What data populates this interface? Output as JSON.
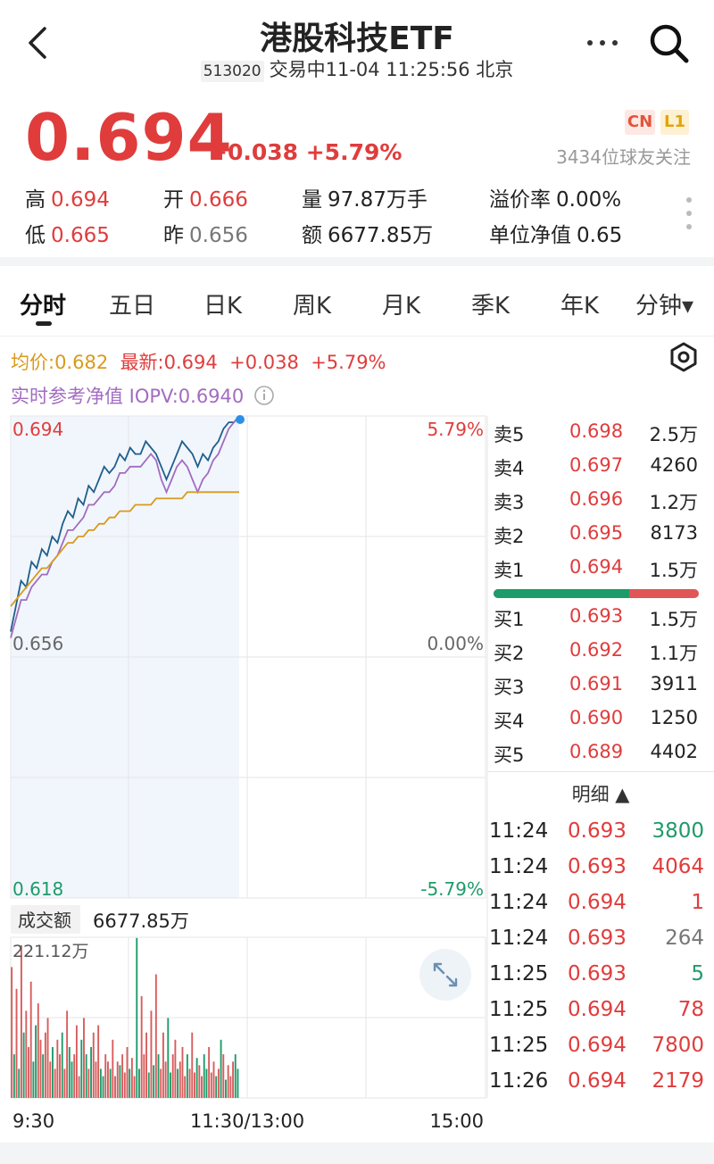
{
  "header": {
    "title": "港股科技ETF",
    "code": "513020",
    "status": "交易中11-04 11:25:56 北京",
    "icons": [
      "back-arrow-icon",
      "more-icon",
      "search-icon"
    ]
  },
  "quote": {
    "price": "0.694",
    "change": "+0.038 +5.79%",
    "badge_cn": "CN",
    "badge_l1": "L1",
    "followers": "3434位球友关注",
    "stats": [
      {
        "label": "高",
        "value": "0.694",
        "color": "red"
      },
      {
        "label": "开",
        "value": "0.666",
        "color": "red"
      },
      {
        "label": "量",
        "value": "97.87万手",
        "color": "black"
      },
      {
        "label": "溢价率",
        "value": "0.00%",
        "color": "black"
      },
      {
        "label": "低",
        "value": "0.665",
        "color": "red"
      },
      {
        "label": "昨",
        "value": "0.656",
        "color": "gray"
      },
      {
        "label": "额",
        "value": "6677.85万",
        "color": "black"
      },
      {
        "label": "单位净值",
        "value": "0.65",
        "color": "black"
      }
    ]
  },
  "tabs": [
    "分时",
    "五日",
    "日K",
    "周K",
    "月K",
    "季K",
    "年K",
    "分钟▾"
  ],
  "info": {
    "avg": "均价:0.682",
    "latest": "最新:0.694",
    "latest_change": "+0.038",
    "latest_pct": "+5.79%",
    "iopv": "实时参考净值 IOPV:0.6940",
    "info_icon": "info-icon",
    "settings_icon": "settings-icon"
  },
  "chart_labels": {
    "price_high": "0.694",
    "pct_high": "5.79%",
    "price_mid": "0.656",
    "pct_mid": "0.00%",
    "price_low": "0.618",
    "pct_low": "-5.79%",
    "vol_label": "成交额",
    "vol_total": "6677.85万",
    "vol_max": "221.12万",
    "time_start": "9:30",
    "time_mid": "11:30/13:00",
    "time_end": "15:00",
    "expand_icon": "expand-icon"
  },
  "order_book": {
    "asks": [
      {
        "label": "卖5",
        "price": "0.698",
        "vol": "2.5万"
      },
      {
        "label": "卖4",
        "price": "0.697",
        "vol": "4260"
      },
      {
        "label": "卖3",
        "price": "0.696",
        "vol": "1.2万"
      },
      {
        "label": "卖2",
        "price": "0.695",
        "vol": "8173"
      },
      {
        "label": "卖1",
        "price": "0.694",
        "vol": "1.5万"
      }
    ],
    "bid_ratio": 0.66,
    "bids": [
      {
        "label": "买1",
        "price": "0.693",
        "vol": "1.5万"
      },
      {
        "label": "买2",
        "price": "0.692",
        "vol": "1.1万"
      },
      {
        "label": "买3",
        "price": "0.691",
        "vol": "3911"
      },
      {
        "label": "买4",
        "price": "0.690",
        "vol": "1250"
      },
      {
        "label": "买5",
        "price": "0.689",
        "vol": "4402"
      }
    ]
  },
  "detail": {
    "title": "明细 ▲",
    "rows": [
      {
        "time": "11:24",
        "price": "0.693",
        "vol": "3800",
        "dir": "green"
      },
      {
        "time": "11:24",
        "price": "0.693",
        "vol": "4064",
        "dir": "red"
      },
      {
        "time": "11:24",
        "price": "0.694",
        "vol": "1",
        "dir": "red"
      },
      {
        "time": "11:24",
        "price": "0.693",
        "vol": "264",
        "dir": "gray"
      },
      {
        "time": "11:25",
        "price": "0.693",
        "vol": "5",
        "dir": "green"
      },
      {
        "time": "11:25",
        "price": "0.694",
        "vol": "78",
        "dir": "red"
      },
      {
        "time": "11:25",
        "price": "0.694",
        "vol": "7800",
        "dir": "red"
      },
      {
        "time": "11:26",
        "price": "0.694",
        "vol": "2179",
        "dir": "red"
      }
    ]
  },
  "chart_data": {
    "type": "line",
    "y_range": [
      0.618,
      0.694
    ],
    "prev_close": 0.656,
    "series": [
      {
        "name": "",
        "color": "#1f5f8b",
        "values": [
          0.66,
          0.664,
          0.668,
          0.667,
          0.671,
          0.67,
          0.673,
          0.672,
          0.675,
          0.674,
          0.677,
          0.679,
          0.678,
          0.681,
          0.68,
          0.683,
          0.682,
          0.684,
          0.686,
          0.685,
          0.686,
          0.688,
          0.687,
          0.689,
          0.688,
          0.688,
          0.69,
          0.689,
          0.688,
          0.686,
          0.684,
          0.686,
          0.688,
          0.69,
          0.689,
          0.688,
          0.686,
          0.688,
          0.687,
          0.689,
          0.69,
          0.692,
          0.693,
          0.693,
          0.694
        ]
      },
      {
        "name": "",
        "color": "#a26cc0",
        "values": [
          0.659,
          0.662,
          0.665,
          0.665,
          0.667,
          0.668,
          0.669,
          0.669,
          0.671,
          0.672,
          0.674,
          0.676,
          0.676,
          0.677,
          0.678,
          0.68,
          0.68,
          0.681,
          0.682,
          0.682,
          0.683,
          0.685,
          0.685,
          0.686,
          0.686,
          0.686,
          0.687,
          0.688,
          0.687,
          0.684,
          0.682,
          0.684,
          0.686,
          0.687,
          0.686,
          0.684,
          0.682,
          0.684,
          0.685,
          0.687,
          0.688,
          0.69,
          0.692,
          0.693,
          0.694
        ]
      },
      {
        "name": "均价",
        "color": "#d99a1c",
        "values": [
          0.664,
          0.665,
          0.666,
          0.667,
          0.668,
          0.669,
          0.67,
          0.67,
          0.671,
          0.672,
          0.673,
          0.674,
          0.674,
          0.675,
          0.675,
          0.676,
          0.676,
          0.677,
          0.677,
          0.678,
          0.678,
          0.679,
          0.679,
          0.679,
          0.68,
          0.68,
          0.68,
          0.68,
          0.681,
          0.681,
          0.681,
          0.681,
          0.681,
          0.681,
          0.682,
          0.682,
          0.682,
          0.682,
          0.682,
          0.682,
          0.682,
          0.682,
          0.682,
          0.682,
          0.682
        ]
      }
    ],
    "volume": {
      "unit": "万",
      "values": [
        180,
        60,
        150,
        40,
        210,
        90,
        120,
        70,
        160,
        50,
        100,
        130,
        80,
        60,
        90,
        110,
        50,
        70,
        40,
        80,
        60,
        90,
        40,
        120,
        70,
        50,
        60,
        100,
        30,
        80,
        110,
        60,
        40,
        70,
        90,
        50,
        100,
        40,
        30,
        60,
        50,
        40,
        80,
        30,
        50,
        45,
        60,
        35,
        70,
        40,
        55,
        30,
        220,
        40,
        140,
        60,
        90,
        35,
        120,
        45,
        170,
        60,
        40,
        90,
        50,
        110,
        35,
        60,
        80,
        40,
        50,
        70,
        30,
        60,
        40,
        90,
        35,
        55,
        45,
        30,
        60,
        40,
        70,
        35,
        50,
        30,
        40,
        80,
        60,
        25,
        45,
        30,
        50,
        60,
        40
      ],
      "colors": "mixed"
    }
  }
}
